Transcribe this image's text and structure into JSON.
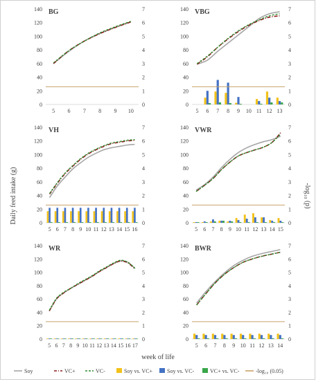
{
  "figure": {
    "ylabel_left": "Daily feed intake (g)",
    "ylabel_right": "-log₁₀ (p)",
    "xlabel": "week of life",
    "left_ticks": [
      "0",
      "20",
      "40",
      "60",
      "80",
      "100",
      "120",
      "140"
    ],
    "right_ticks": [
      "0",
      "1",
      "2",
      "3",
      "4",
      "5",
      "6",
      "7"
    ],
    "colors": {
      "soy": "#a6a6a6",
      "vc_plus": "#8b1a1a",
      "vc_minus": "#2e8b2e",
      "soy_vs_vcplus": "#f2c21b",
      "soy_vs_vcminus": "#4472c4",
      "vcplus_vs_vcminus": "#3aa64a",
      "threshold": "#c8a06a"
    },
    "legend": [
      {
        "label": "Soy",
        "kind": "line",
        "color_key": "soy"
      },
      {
        "label": "VC+",
        "kind": "dashdot",
        "color_key": "vc_plus"
      },
      {
        "label": "VC-",
        "kind": "dash",
        "color_key": "vc_minus"
      },
      {
        "label": "Soy vs. VC+",
        "kind": "bar",
        "color_key": "soy_vs_vcplus"
      },
      {
        "label": "Soy vs. VC-",
        "kind": "bar",
        "color_key": "soy_vs_vcminus"
      },
      {
        "label": "VC+ vs. VC-",
        "kind": "bar",
        "color_key": "vcplus_vs_vcminus"
      },
      {
        "label": "-log₁₀ (0.05)",
        "kind": "line",
        "color_key": "threshold"
      }
    ]
  },
  "chart_data": [
    {
      "type": "line",
      "panel": "BG",
      "title": "BG",
      "x": [
        5,
        6,
        7,
        8,
        9,
        10
      ],
      "ylim": [
        0,
        140
      ],
      "y2lim": [
        0,
        7
      ],
      "threshold": 1.3,
      "series": [
        {
          "name": "Soy",
          "values": [
            60,
            78,
            93,
            104,
            113,
            121
          ]
        },
        {
          "name": "VC+",
          "values": [
            60,
            79,
            93,
            104,
            113,
            121
          ]
        },
        {
          "name": "VC-",
          "values": [
            61,
            79,
            93,
            105,
            114,
            122
          ]
        }
      ],
      "pvalues": {
        "soy_vs_vcplus": [
          0,
          0,
          0,
          0,
          0,
          0
        ],
        "soy_vs_vcminus": [
          0,
          0,
          0,
          0,
          0,
          0
        ],
        "vcplus_vs_vcminus": [
          0,
          0,
          0,
          0,
          0,
          0
        ]
      }
    },
    {
      "type": "line",
      "panel": "VBG",
      "title": "VBG",
      "x": [
        5,
        6,
        7,
        8,
        9,
        10,
        11,
        12,
        13
      ],
      "ylim": [
        0,
        140
      ],
      "y2lim": [
        0,
        7
      ],
      "threshold": 1.3,
      "series": [
        {
          "name": "Soy",
          "values": [
            59,
            65,
            78,
            90,
            102,
            114,
            126,
            133,
            136
          ]
        },
        {
          "name": "VC+",
          "values": [
            59,
            70,
            84,
            96,
            107,
            116,
            123,
            128,
            130
          ]
        },
        {
          "name": "VC-",
          "values": [
            60,
            71,
            84,
            97,
            108,
            117,
            124,
            130,
            133
          ]
        }
      ],
      "pvalues": {
        "soy_vs_vcplus": [
          0,
          0.5,
          0.95,
          0.85,
          0.12,
          0,
          0.4,
          0.95,
          0.5
        ],
        "soy_vs_vcminus": [
          0,
          1.0,
          1.8,
          1.6,
          0.55,
          0,
          0.25,
          0.5,
          0.25
        ],
        "vcplus_vs_vcminus": [
          0,
          0.1,
          0.15,
          0.1,
          0.05,
          0,
          0.05,
          0.15,
          0.15
        ]
      }
    },
    {
      "type": "line",
      "panel": "VH",
      "title": "VH",
      "x": [
        5,
        6,
        7,
        8,
        9,
        10,
        11,
        12,
        13,
        14,
        15,
        16
      ],
      "ylim": [
        0,
        140
      ],
      "y2lim": [
        0,
        7
      ],
      "threshold": 1.3,
      "series": [
        {
          "name": "Soy",
          "values": [
            37,
            54,
            67,
            79,
            88,
            96,
            102,
            107,
            110,
            112,
            114,
            115
          ]
        },
        {
          "name": "VC+",
          "values": [
            42,
            58,
            72,
            83,
            93,
            101,
            107,
            112,
            116,
            118,
            120,
            121
          ]
        },
        {
          "name": "VC-",
          "values": [
            43,
            59,
            73,
            84,
            94,
            102,
            108,
            113,
            117,
            119,
            121,
            122
          ]
        }
      ],
      "pvalues": {
        "soy_vs_vcplus": [
          0.85,
          0.85,
          0.85,
          0.85,
          0.85,
          0.85,
          0.85,
          0.85,
          0.85,
          0.85,
          0.85,
          0.85
        ],
        "soy_vs_vcminus": [
          1.1,
          1.1,
          1.1,
          1.1,
          1.1,
          1.1,
          1.1,
          1.1,
          1.1,
          1.1,
          1.1,
          1.1
        ],
        "vcplus_vs_vcminus": [
          0.05,
          0.05,
          0.05,
          0.05,
          0.05,
          0.05,
          0.05,
          0.05,
          0.05,
          0.05,
          0.05,
          0.05
        ]
      }
    },
    {
      "type": "line",
      "panel": "VWR",
      "title": "VWR",
      "x": [
        5,
        6,
        7,
        8,
        9,
        10,
        11,
        12,
        13,
        14,
        15
      ],
      "ylim": [
        0,
        140
      ],
      "y2lim": [
        0,
        7
      ],
      "threshold": 1.3,
      "series": [
        {
          "name": "Soy",
          "values": [
            48,
            56,
            67,
            81,
            93,
            103,
            110,
            115,
            119,
            122,
            127
          ]
        },
        {
          "name": "VC+",
          "values": [
            46,
            55,
            65,
            78,
            89,
            98,
            103,
            107,
            111,
            118,
            132
          ]
        },
        {
          "name": "VC-",
          "values": [
            46,
            55,
            65,
            78,
            89,
            98,
            103,
            107,
            111,
            118,
            130
          ]
        }
      ],
      "pvalues": {
        "soy_vs_vcplus": [
          0.05,
          0.05,
          0.1,
          0.15,
          0.1,
          0.35,
          0.6,
          0.7,
          0.4,
          0.2,
          0.35
        ],
        "soy_vs_vcminus": [
          0.05,
          0.1,
          0.25,
          0.15,
          0.15,
          0.2,
          0.3,
          0.4,
          0.4,
          0.15,
          0.15
        ],
        "vcplus_vs_vcminus": [
          0.05,
          0.05,
          0.1,
          0.15,
          0.1,
          0.05,
          0.05,
          0.05,
          0.05,
          0.05,
          0.05
        ]
      }
    },
    {
      "type": "line",
      "panel": "WR",
      "title": "WR",
      "x": [
        5,
        6,
        7,
        8,
        9,
        10,
        11,
        12,
        13,
        14,
        15,
        16,
        17
      ],
      "ylim": [
        0,
        140
      ],
      "y2lim": [
        0,
        7
      ],
      "threshold": 1.3,
      "series": [
        {
          "name": "Soy",
          "values": [
            42,
            60,
            69,
            76,
            82,
            88,
            94,
            101,
            107,
            113,
            117,
            115,
            106
          ]
        },
        {
          "name": "VC+",
          "values": [
            42,
            60,
            69,
            76,
            82,
            88,
            94,
            101,
            107,
            113,
            117,
            114,
            105
          ]
        },
        {
          "name": "VC-",
          "values": [
            43,
            61,
            70,
            76,
            83,
            89,
            95,
            102,
            108,
            114,
            118,
            115,
            106
          ]
        }
      ],
      "pvalues": {
        "soy_vs_vcplus": [
          0.02,
          0.02,
          0.02,
          0.02,
          0.02,
          0.02,
          0.02,
          0.02,
          0.02,
          0.02,
          0.02,
          0.02,
          0.02
        ],
        "soy_vs_vcminus": [
          0.02,
          0.02,
          0.02,
          0.02,
          0.02,
          0.02,
          0.02,
          0.02,
          0.02,
          0.02,
          0.02,
          0.02,
          0.02
        ],
        "vcplus_vs_vcminus": [
          0.02,
          0.02,
          0.02,
          0.02,
          0.02,
          0.02,
          0.02,
          0.02,
          0.02,
          0.02,
          0.02,
          0.02,
          0.02
        ]
      }
    },
    {
      "type": "line",
      "panel": "BWR",
      "title": "BWR",
      "x": [
        5,
        6,
        7,
        8,
        9,
        10,
        11,
        12,
        13,
        14
      ],
      "ylim": [
        0,
        140
      ],
      "y2lim": [
        0,
        7
      ],
      "threshold": 1.3,
      "series": [
        {
          "name": "Soy",
          "values": [
            54,
            71,
            86,
            99,
            110,
            118,
            124,
            128,
            131,
            134
          ]
        },
        {
          "name": "VC+",
          "values": [
            51,
            68,
            84,
            97,
            107,
            115,
            120,
            124,
            127,
            130
          ]
        },
        {
          "name": "VC-",
          "values": [
            51,
            68,
            84,
            97,
            107,
            115,
            120,
            124,
            127,
            130
          ]
        }
      ],
      "pvalues": {
        "soy_vs_vcplus": [
          0.4,
          0.4,
          0.4,
          0.4,
          0.4,
          0.4,
          0.4,
          0.4,
          0.4,
          0.4
        ],
        "soy_vs_vcminus": [
          0.3,
          0.3,
          0.3,
          0.3,
          0.3,
          0.3,
          0.3,
          0.3,
          0.3,
          0.3
        ],
        "vcplus_vs_vcminus": [
          0.05,
          0.05,
          0.05,
          0.05,
          0.05,
          0.05,
          0.05,
          0.05,
          0.05,
          0.05
        ]
      }
    }
  ]
}
